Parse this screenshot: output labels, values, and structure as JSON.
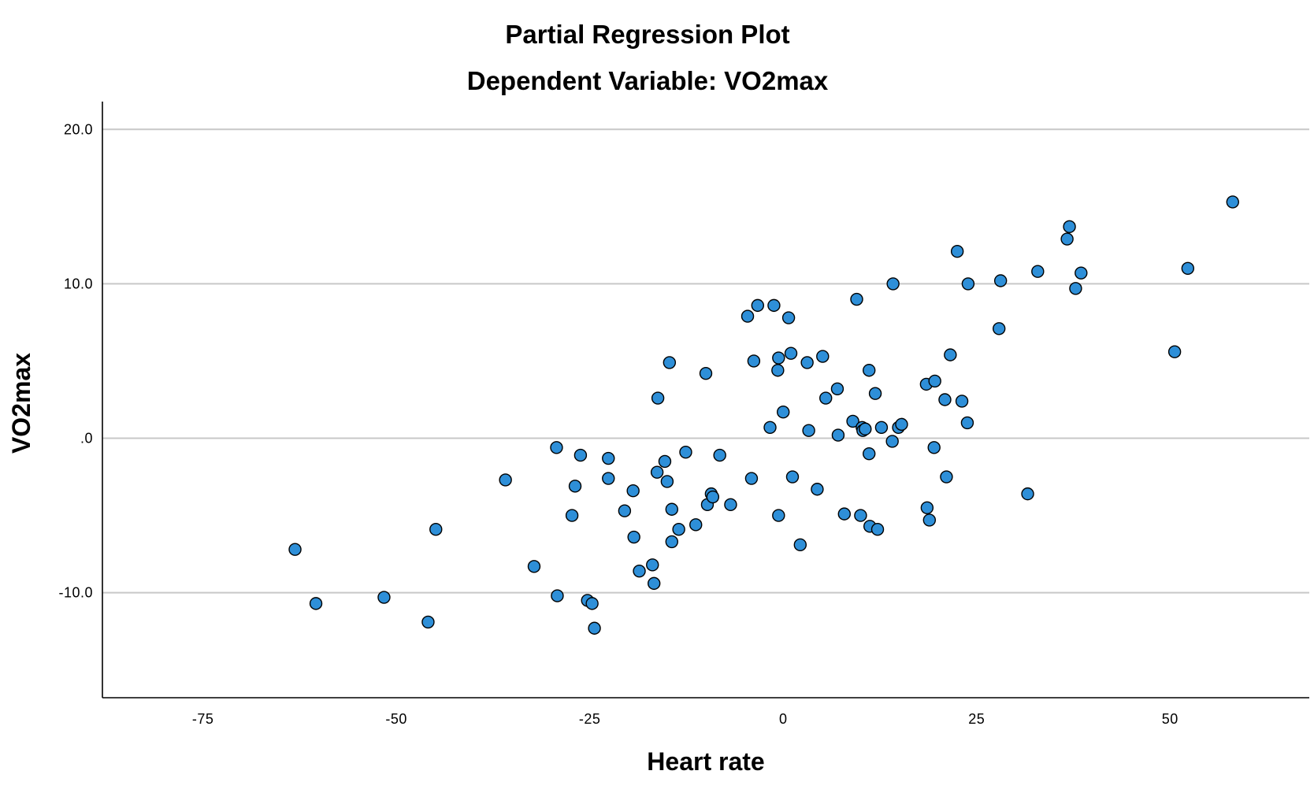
{
  "chart_data": {
    "type": "scatter",
    "title": "Partial Regression Plot",
    "subtitle": "Dependent Variable: VO2max",
    "xlabel": "Heart rate",
    "ylabel": "VO2max",
    "xlim": [
      -88,
      68
    ],
    "ylim": [
      -16.8,
      21.8
    ],
    "x_ticks": [
      -75,
      -50,
      -25,
      0,
      25,
      50
    ],
    "x_tick_labels": [
      "-75",
      "-50",
      "-25",
      "0",
      "25",
      "50"
    ],
    "y_ticks": [
      20,
      10,
      0,
      -10
    ],
    "y_tick_labels": [
      "20.0",
      "10.0",
      ".0",
      "-10.0"
    ],
    "grid": "horizontal",
    "point_color": "#2e8fd8",
    "points": [
      {
        "x": -63.1,
        "y": -7.2
      },
      {
        "x": -60.4,
        "y": -10.7
      },
      {
        "x": -51.6,
        "y": -10.3
      },
      {
        "x": -45.9,
        "y": -11.9
      },
      {
        "x": -44.9,
        "y": -5.9
      },
      {
        "x": -35.9,
        "y": -2.7
      },
      {
        "x": -32.2,
        "y": -8.3
      },
      {
        "x": -29.2,
        "y": -10.2
      },
      {
        "x": -29.3,
        "y": -0.6
      },
      {
        "x": -27.3,
        "y": -5.0
      },
      {
        "x": -26.9,
        "y": -3.1
      },
      {
        "x": -26.2,
        "y": -1.1
      },
      {
        "x": -25.3,
        "y": -10.5
      },
      {
        "x": -24.7,
        "y": -10.7
      },
      {
        "x": -24.4,
        "y": -12.3
      },
      {
        "x": -22.6,
        "y": -1.3
      },
      {
        "x": -22.6,
        "y": -2.6
      },
      {
        "x": -20.5,
        "y": -4.7
      },
      {
        "x": -19.4,
        "y": -3.4
      },
      {
        "x": -19.3,
        "y": -6.4
      },
      {
        "x": -18.6,
        "y": -8.6
      },
      {
        "x": -16.9,
        "y": -8.2
      },
      {
        "x": -16.7,
        "y": -9.4
      },
      {
        "x": -16.3,
        "y": -2.2
      },
      {
        "x": -16.2,
        "y": 2.6
      },
      {
        "x": -15.3,
        "y": -1.5
      },
      {
        "x": -15.0,
        "y": -2.8
      },
      {
        "x": -14.7,
        "y": 4.9
      },
      {
        "x": -14.4,
        "y": -4.6
      },
      {
        "x": -14.4,
        "y": -6.7
      },
      {
        "x": -13.5,
        "y": -5.9
      },
      {
        "x": -12.6,
        "y": -0.9
      },
      {
        "x": -11.3,
        "y": -5.6
      },
      {
        "x": -10.0,
        "y": 4.2
      },
      {
        "x": -9.8,
        "y": -4.3
      },
      {
        "x": -9.3,
        "y": -3.6
      },
      {
        "x": -9.1,
        "y": -3.8
      },
      {
        "x": -8.2,
        "y": -1.1
      },
      {
        "x": -6.8,
        "y": -4.3
      },
      {
        "x": -4.6,
        "y": 7.9
      },
      {
        "x": -4.1,
        "y": -2.6
      },
      {
        "x": -3.8,
        "y": 5.0
      },
      {
        "x": -3.3,
        "y": 8.6
      },
      {
        "x": -1.7,
        "y": 0.7
      },
      {
        "x": -1.2,
        "y": 8.6
      },
      {
        "x": -0.7,
        "y": 4.4
      },
      {
        "x": -0.6,
        "y": 5.2
      },
      {
        "x": -0.6,
        "y": -5.0
      },
      {
        "x": 0.0,
        "y": 1.7
      },
      {
        "x": 0.7,
        "y": 7.8
      },
      {
        "x": 1.0,
        "y": 5.5
      },
      {
        "x": 1.2,
        "y": -2.5
      },
      {
        "x": 2.2,
        "y": -6.9
      },
      {
        "x": 3.1,
        "y": 4.9
      },
      {
        "x": 3.3,
        "y": 0.5
      },
      {
        "x": 4.4,
        "y": -3.3
      },
      {
        "x": 5.1,
        "y": 5.3
      },
      {
        "x": 5.5,
        "y": 2.6
      },
      {
        "x": 7.0,
        "y": 3.2
      },
      {
        "x": 7.1,
        "y": 0.2
      },
      {
        "x": 7.9,
        "y": -4.9
      },
      {
        "x": 9.0,
        "y": 1.1
      },
      {
        "x": 9.5,
        "y": 9.0
      },
      {
        "x": 10.0,
        "y": -5.0
      },
      {
        "x": 10.2,
        "y": 0.7
      },
      {
        "x": 10.3,
        "y": 0.5
      },
      {
        "x": 10.6,
        "y": 0.6
      },
      {
        "x": 11.1,
        "y": 4.4
      },
      {
        "x": 11.1,
        "y": -1.0
      },
      {
        "x": 11.2,
        "y": -5.7
      },
      {
        "x": 11.9,
        "y": 2.9
      },
      {
        "x": 12.2,
        "y": -5.9
      },
      {
        "x": 12.7,
        "y": 0.7
      },
      {
        "x": 14.1,
        "y": -0.2
      },
      {
        "x": 14.2,
        "y": 10.0
      },
      {
        "x": 14.9,
        "y": 0.7
      },
      {
        "x": 15.3,
        "y": 0.9
      },
      {
        "x": 18.5,
        "y": 3.5
      },
      {
        "x": 18.6,
        "y": -4.5
      },
      {
        "x": 18.9,
        "y": -5.3
      },
      {
        "x": 19.5,
        "y": -0.6
      },
      {
        "x": 19.6,
        "y": 3.7
      },
      {
        "x": 20.9,
        "y": 2.5
      },
      {
        "x": 21.1,
        "y": -2.5
      },
      {
        "x": 21.6,
        "y": 5.4
      },
      {
        "x": 22.5,
        "y": 12.1
      },
      {
        "x": 23.1,
        "y": 2.4
      },
      {
        "x": 23.8,
        "y": 1.0
      },
      {
        "x": 23.9,
        "y": 10.0
      },
      {
        "x": 27.9,
        "y": 7.1
      },
      {
        "x": 28.1,
        "y": 10.2
      },
      {
        "x": 31.6,
        "y": -3.6
      },
      {
        "x": 32.9,
        "y": 10.8
      },
      {
        "x": 36.7,
        "y": 12.9
      },
      {
        "x": 37.0,
        "y": 13.7
      },
      {
        "x": 37.8,
        "y": 9.7
      },
      {
        "x": 38.5,
        "y": 10.7
      },
      {
        "x": 50.6,
        "y": 5.6
      },
      {
        "x": 52.3,
        "y": 11.0
      },
      {
        "x": 58.1,
        "y": 15.3
      }
    ]
  }
}
